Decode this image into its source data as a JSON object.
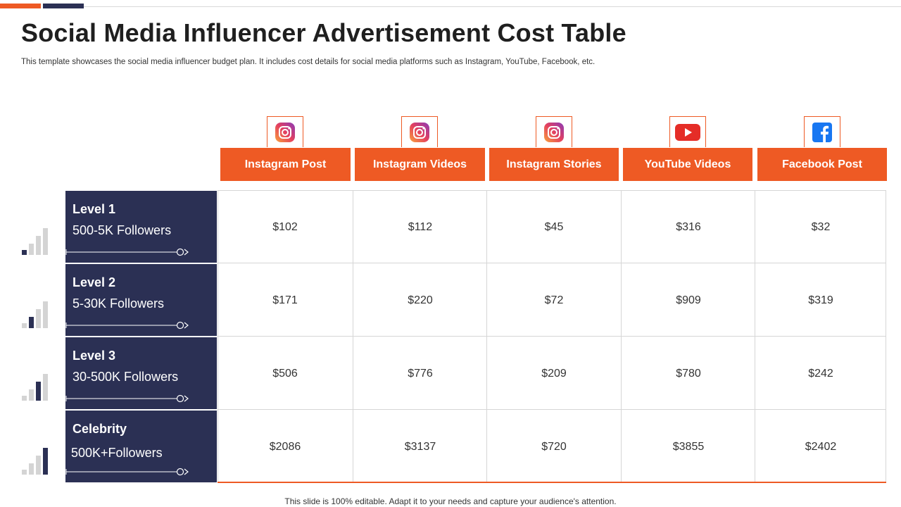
{
  "title": "Social Media Influencer Advertisement Cost Table",
  "subtitle": "This template showcases the social media influencer budget plan. It includes cost details for social media platforms such as Instagram, YouTube, Facebook, etc.",
  "columns": [
    {
      "label": "Instagram Post",
      "icon": "instagram-icon"
    },
    {
      "label": "Instagram Videos",
      "icon": "instagram-icon"
    },
    {
      "label": "Instagram Stories",
      "icon": "instagram-icon"
    },
    {
      "label": "YouTube Videos",
      "icon": "youtube-icon"
    },
    {
      "label": "Facebook Post",
      "icon": "facebook-icon"
    }
  ],
  "rows": [
    {
      "level": "Level 1",
      "followers": "500-5K Followers",
      "signal_level": 1,
      "values": [
        "$102",
        "$112",
        "$45",
        "$316",
        "$32"
      ]
    },
    {
      "level": "Level 2",
      "followers": "5-30K Followers",
      "signal_level": 2,
      "values": [
        "$171",
        "$220",
        "$72",
        "$909",
        "$319"
      ]
    },
    {
      "level": "Level 3",
      "followers": "30-500K Followers",
      "signal_level": 3,
      "values": [
        "$506",
        "$776",
        "$209",
        "$780",
        "$242"
      ]
    },
    {
      "level": "Celebrity",
      "followers": "500K+Followers",
      "signal_level": 4,
      "values": [
        "$2086",
        "$3137",
        "$720",
        "$3855",
        "$2402"
      ]
    }
  ],
  "footer": "This slide is 100% editable. Adapt it to your needs and capture your audience's attention.",
  "colors": {
    "accent": "#ee5a24",
    "navy": "#2b3054",
    "bar_inactive": "#d4d4d4"
  }
}
